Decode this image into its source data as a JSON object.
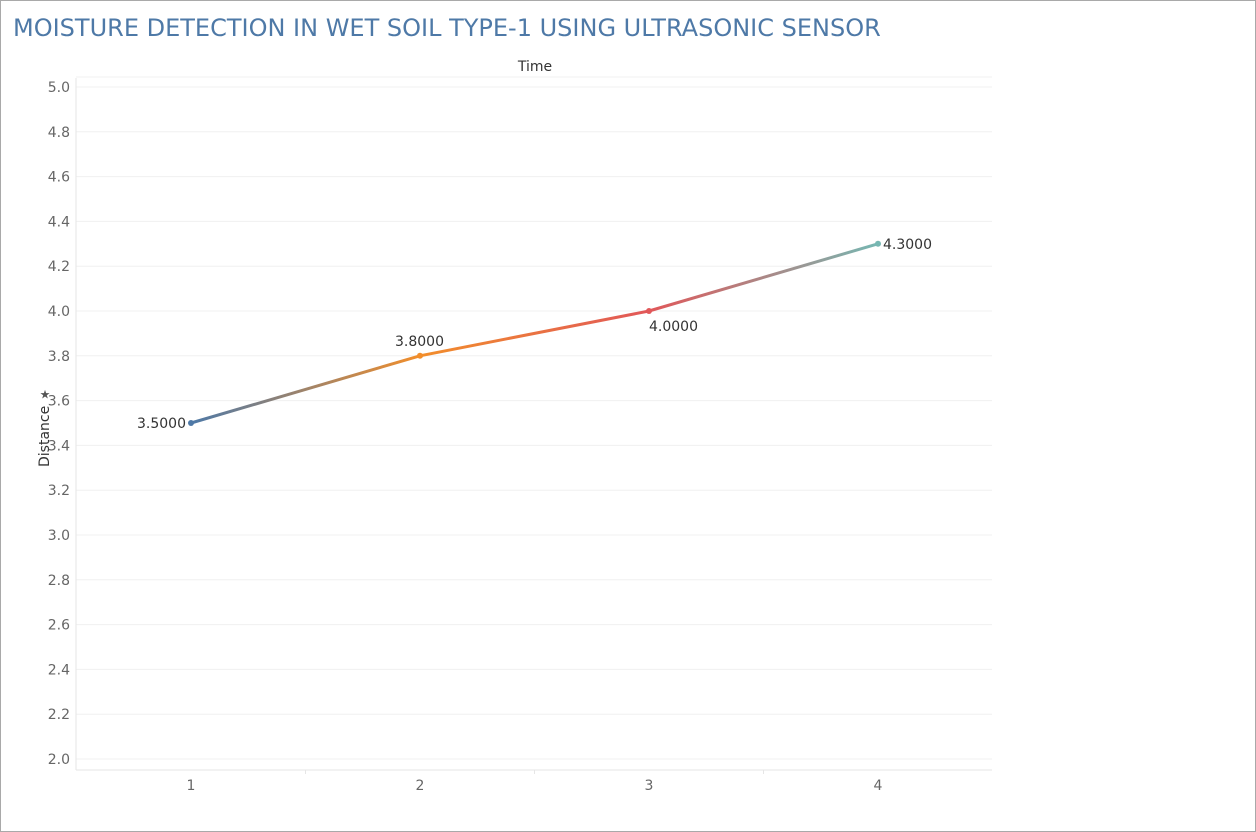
{
  "chart_data": {
    "type": "line",
    "title": "MOISTURE DETECTION IN WET SOIL TYPE-1  USING ULTRASONIC SENSOR",
    "xlabel": "Time",
    "ylabel": "Distance",
    "x": [
      1,
      2,
      3,
      4
    ],
    "x_tick_labels": [
      "1",
      "2",
      "3",
      "4"
    ],
    "values": [
      3.5,
      3.8,
      4.0,
      4.3
    ],
    "data_labels": [
      "3.5000",
      "3.8000",
      "4.0000",
      "4.3000"
    ],
    "ylim": [
      2.0,
      5.0
    ],
    "y_tick_labels": [
      "5.0",
      "4.8",
      "4.6",
      "4.4",
      "4.2",
      "4.0",
      "3.8",
      "3.6",
      "3.4",
      "3.2",
      "3.0",
      "2.8",
      "2.6",
      "2.4",
      "2.2",
      "2.0"
    ],
    "y_ticks": [
      5.0,
      4.8,
      4.6,
      4.4,
      4.2,
      4.0,
      3.8,
      3.6,
      3.4,
      3.2,
      3.0,
      2.8,
      2.6,
      2.4,
      2.2,
      2.0
    ],
    "point_colors": [
      "#4e79a7",
      "#f28e2b",
      "#e15759",
      "#76b7b2"
    ],
    "grid": true
  }
}
